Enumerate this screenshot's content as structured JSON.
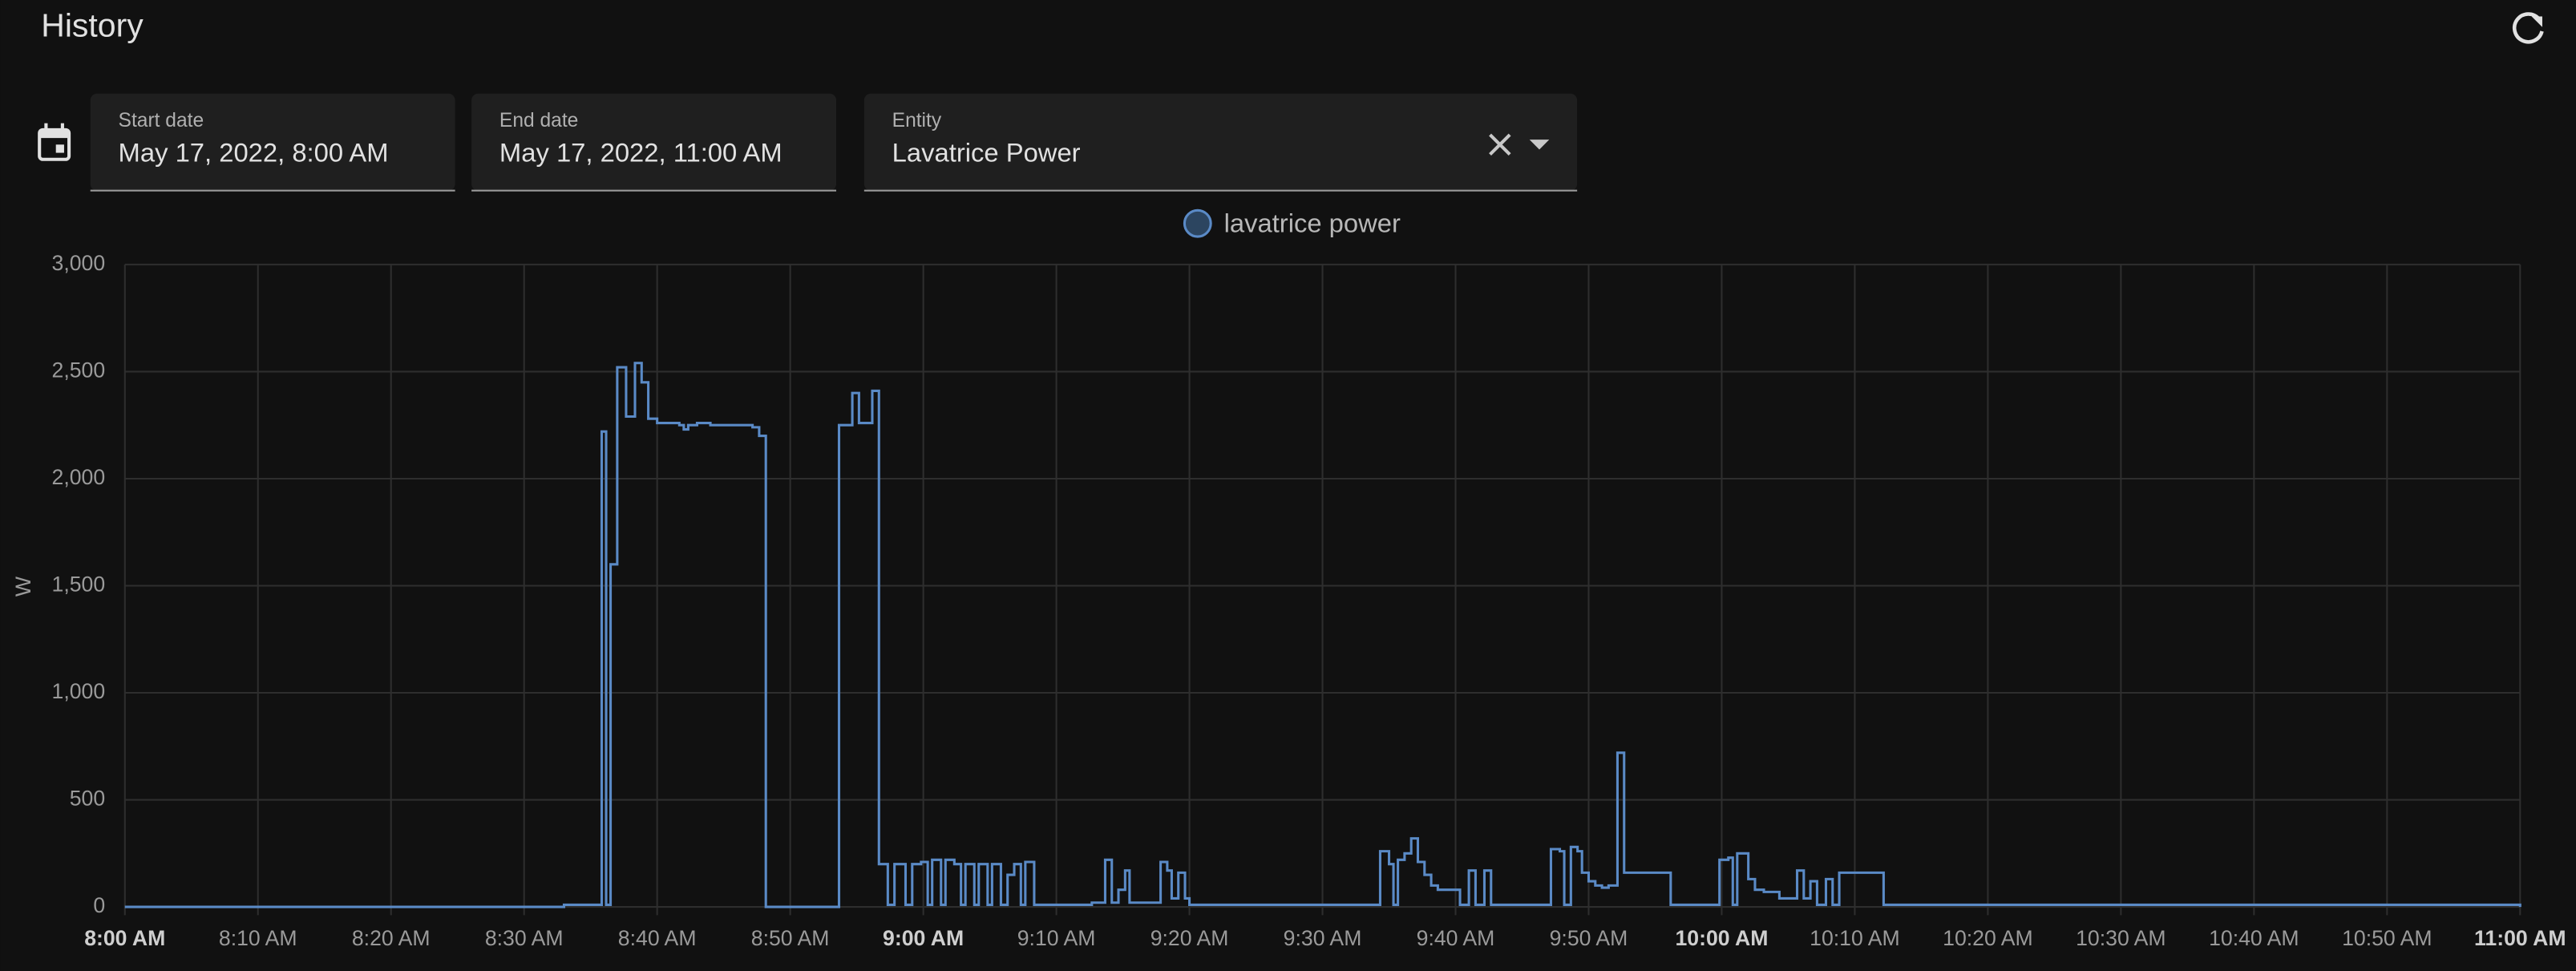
{
  "header": {
    "title": "History"
  },
  "filters": {
    "start_label": "Start date",
    "start_value": "May 17, 2022, 8:00 AM",
    "end_label": "End date",
    "end_value": "May 17, 2022, 11:00 AM",
    "entity_label": "Entity",
    "entity_value": "Lavatrice Power"
  },
  "chart_data": {
    "type": "line",
    "step": true,
    "ylabel": "W",
    "grid": true,
    "xlim": [
      "08:00:00",
      "11:00:00"
    ],
    "ylim": [
      0,
      3000
    ],
    "yticks": [
      0,
      500,
      {
        "value": 1000,
        "label": "1,000"
      },
      {
        "value": 1500,
        "label": "1,500"
      },
      {
        "value": 2000,
        "label": "2,000"
      },
      {
        "value": 2500,
        "label": "2,500"
      },
      {
        "value": 3000,
        "label": "3,000"
      }
    ],
    "xticks": [
      {
        "value": "08:00:00",
        "label": "8:00 AM",
        "bold": true
      },
      {
        "value": "08:10:00",
        "label": "8:10 AM"
      },
      {
        "value": "08:20:00",
        "label": "8:20 AM"
      },
      {
        "value": "08:30:00",
        "label": "8:30 AM"
      },
      {
        "value": "08:40:00",
        "label": "8:40 AM"
      },
      {
        "value": "08:50:00",
        "label": "8:50 AM"
      },
      {
        "value": "09:00:00",
        "label": "9:00 AM",
        "bold": true
      },
      {
        "value": "09:10:00",
        "label": "9:10 AM"
      },
      {
        "value": "09:20:00",
        "label": "9:20 AM"
      },
      {
        "value": "09:30:00",
        "label": "9:30 AM"
      },
      {
        "value": "09:40:00",
        "label": "9:40 AM"
      },
      {
        "value": "09:50:00",
        "label": "9:50 AM"
      },
      {
        "value": "10:00:00",
        "label": "10:00 AM",
        "bold": true
      },
      {
        "value": "10:10:00",
        "label": "10:10 AM"
      },
      {
        "value": "10:20:00",
        "label": "10:20 AM"
      },
      {
        "value": "10:30:00",
        "label": "10:30 AM"
      },
      {
        "value": "10:40:00",
        "label": "10:40 AM"
      },
      {
        "value": "10:50:00",
        "label": "10:50 AM"
      },
      {
        "value": "11:00:00",
        "label": "11:00 AM",
        "bold": true
      }
    ],
    "series": [
      {
        "name": "lavatrice power",
        "color": "#5a8ac6",
        "x": [
          "08:00:00",
          "08:33:00",
          "08:35:50",
          "08:36:10",
          "08:36:30",
          "08:37:00",
          "08:37:40",
          "08:38:20",
          "08:38:50",
          "08:39:20",
          "08:40:00",
          "08:41:40",
          "08:42:00",
          "08:42:20",
          "08:43:00",
          "08:44:00",
          "08:47:10",
          "08:47:40",
          "08:48:10",
          "08:53:40",
          "08:54:40",
          "08:55:10",
          "08:56:10",
          "08:56:40",
          "08:57:20",
          "08:57:50",
          "08:58:40",
          "08:59:10",
          "08:59:50",
          "09:00:20",
          "09:00:40",
          "09:01:20",
          "09:01:40",
          "09:02:20",
          "09:02:50",
          "09:03:10",
          "09:03:50",
          "09:04:10",
          "09:04:50",
          "09:05:10",
          "09:05:50",
          "09:06:20",
          "09:06:50",
          "09:07:20",
          "09:07:40",
          "09:08:20",
          "09:12:40",
          "09:13:40",
          "09:14:10",
          "09:14:40",
          "09:15:10",
          "09:15:30",
          "09:17:50",
          "09:18:20",
          "09:18:40",
          "09:19:10",
          "09:19:40",
          "09:20:00",
          "09:34:20",
          "09:35:00",
          "09:35:20",
          "09:35:40",
          "09:36:10",
          "09:36:40",
          "09:37:10",
          "09:37:40",
          "09:38:10",
          "09:38:40",
          "09:40:20",
          "09:41:00",
          "09:41:30",
          "09:42:10",
          "09:42:40",
          "09:47:10",
          "09:47:50",
          "09:48:10",
          "09:48:40",
          "09:49:10",
          "09:49:30",
          "09:50:00",
          "09:50:30",
          "09:51:00",
          "09:51:30",
          "09:52:10",
          "09:52:40",
          "09:56:10",
          "09:59:50",
          "10:00:30",
          "10:00:50",
          "10:01:10",
          "10:02:00",
          "10:02:30",
          "10:03:10",
          "10:04:20",
          "10:05:40",
          "10:06:10",
          "10:06:40",
          "10:07:10",
          "10:07:50",
          "10:08:20",
          "10:08:50",
          "10:12:10",
          "11:00:00"
        ],
        "values": [
          0,
          10,
          2220,
          10,
          1600,
          2520,
          2290,
          2540,
          2450,
          2280,
          2260,
          2250,
          2230,
          2250,
          2260,
          2250,
          2240,
          2200,
          0,
          2250,
          2400,
          2260,
          2410,
          200,
          10,
          200,
          10,
          200,
          210,
          10,
          220,
          10,
          220,
          200,
          10,
          200,
          10,
          200,
          10,
          200,
          10,
          150,
          200,
          10,
          210,
          10,
          20,
          220,
          20,
          80,
          170,
          20,
          210,
          170,
          40,
          160,
          40,
          10,
          260,
          200,
          10,
          220,
          250,
          320,
          210,
          150,
          100,
          80,
          10,
          170,
          10,
          170,
          10,
          270,
          260,
          10,
          280,
          260,
          160,
          120,
          100,
          90,
          100,
          720,
          160,
          10,
          220,
          230,
          10,
          250,
          130,
          80,
          70,
          40,
          170,
          40,
          120,
          10,
          130,
          10,
          160,
          10,
          0
        ]
      }
    ]
  }
}
